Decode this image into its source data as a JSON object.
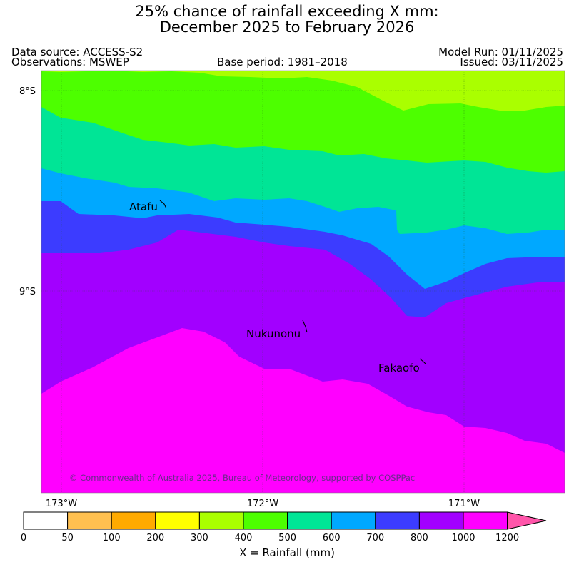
{
  "title": {
    "line1": "25% chance of rainfall exceeding X mm:",
    "line2": "December 2025 to February 2026"
  },
  "header": {
    "data_source": "Data source: ACCESS-S2",
    "observations": "Observations: MSWEP",
    "base_period": "Base period: 1981–2018",
    "model_run": "Model Run: 01/11/2025",
    "issued": "Issued: 03/11/2025"
  },
  "map": {
    "lat_ticks": [
      "8°S",
      "9°S"
    ],
    "lon_ticks": [
      "173°W",
      "172°W",
      "171°W"
    ],
    "places": [
      "Atafu",
      "Nukunonu",
      "Fakaofo"
    ],
    "copyright": "© Commonwealth of Australia 2025, Bureau of Meteorology, supported by COSPPac"
  },
  "legend": {
    "thresholds": [
      "0",
      "50",
      "100",
      "200",
      "300",
      "400",
      "500",
      "600",
      "700",
      "800",
      "1000",
      "1200"
    ],
    "colors": [
      "#ffffff",
      "#ffc050",
      "#ffaa00",
      "#ffff00",
      "#aaff00",
      "#4dff00",
      "#00e596",
      "#00a8ff",
      "#3c3cff",
      "#a200ff",
      "#ff00ff"
    ],
    "arrow_color": "#ff55aa",
    "xlabel": "X = Rainfall (mm)"
  }
}
